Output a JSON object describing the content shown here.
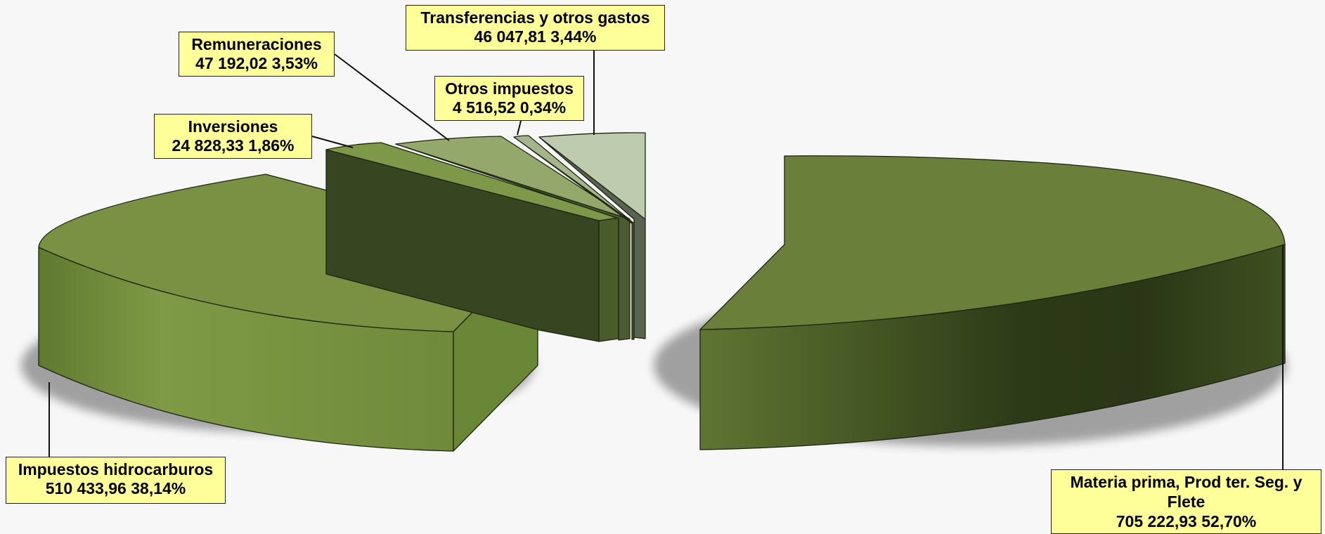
{
  "chart_data": {
    "type": "pie",
    "title": "",
    "slices": [
      {
        "label": "Materia prima,  Prod ter. Seg. y Flete",
        "value": 705222.93,
        "value_text": "705 222,93",
        "percent": 52.7,
        "percent_text": "52,70%",
        "color": "#6a7f3a"
      },
      {
        "label": "Impuestos hidrocarburos",
        "value": 510433.96,
        "value_text": "510 433,96",
        "percent": 38.14,
        "percent_text": "38,14%",
        "color": "#7a9143"
      },
      {
        "label": "Inversiones",
        "value": 24828.33,
        "value_text": "24 828,33",
        "percent": 1.86,
        "percent_text": "1,86%",
        "color": "#7d9849"
      },
      {
        "label": "Remuneraciones",
        "value": 47192.02,
        "value_text": "47 192,02",
        "percent": 3.53,
        "percent_text": "3,53%",
        "color": "#93a86a"
      },
      {
        "label": "Otros impuestos",
        "value": 4516.52,
        "value_text": "4 516,52",
        "percent": 0.34,
        "percent_text": "0,34%",
        "color": "#a4b68a"
      },
      {
        "label": "Transferencias y otros gastos",
        "value": 46047.81,
        "value_text": "46 047,81",
        "percent": 3.44,
        "percent_text": "3,44%",
        "color": "#bfcbae"
      }
    ],
    "style": "3d-exploded-pie",
    "legend": "callouts"
  }
}
